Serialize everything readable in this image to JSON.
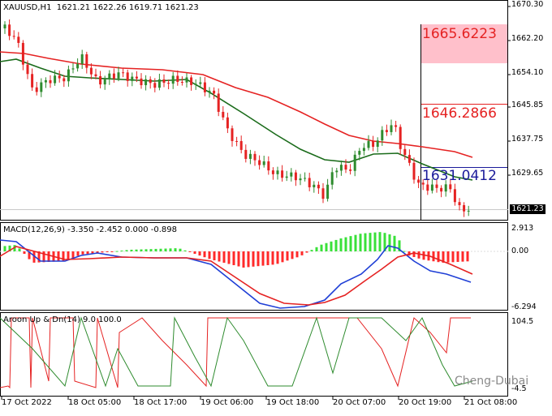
{
  "symbol_header": "XAUUSD,H1  1621.21 1622.26 1619.71 1621.23",
  "current_price": "1621.23",
  "price_axis": [
    "1670.30",
    "1662.20",
    "1654.10",
    "1645.85",
    "1637.75",
    "1629.65",
    "1621.23"
  ],
  "levels": {
    "top": "1665.6223",
    "mid": "1646.2866",
    "low": "1631.0412"
  },
  "macd": {
    "header": "MACD(12,26,9) -3.350 -2.452 0.000 -0.898",
    "axis": [
      "2.913",
      "0.00",
      "-6.294"
    ]
  },
  "aroon": {
    "header": "Aroon Up & Dn(14) 9.0 100.0",
    "axis": [
      "104.5",
      "-4.5"
    ]
  },
  "time_axis": [
    "17 Oct 2022",
    "18 Oct 05:00",
    "18 Oct 17:00",
    "19 Oct 06:00",
    "19 Oct 18:00",
    "20 Oct 07:00",
    "20 Oct 19:00",
    "21 Oct 08:00"
  ],
  "watermark": "Cheng-Dubai",
  "colors": {
    "bull": "#2e8b2e",
    "bear": "#e52222",
    "ma_fast": "#1a6b1a",
    "ma_slow": "#e52222",
    "macd_line": "#1f3fd6",
    "signal_line": "#e52222",
    "hist_up": "#39e039",
    "hist_down": "#ff2a2a",
    "aroon_up": "#e52222",
    "aroon_dn": "#2e8b2e",
    "level_blue": "#1a1a9a",
    "level_red": "#e52222",
    "zone_pink": "#ffc0cb"
  }
}
